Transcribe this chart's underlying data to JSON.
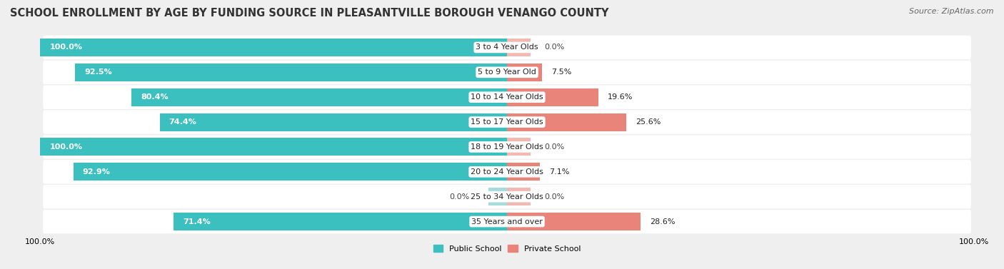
{
  "title": "SCHOOL ENROLLMENT BY AGE BY FUNDING SOURCE IN PLEASANTVILLE BOROUGH VENANGO COUNTY",
  "source": "Source: ZipAtlas.com",
  "categories": [
    "3 to 4 Year Olds",
    "5 to 9 Year Old",
    "10 to 14 Year Olds",
    "15 to 17 Year Olds",
    "18 to 19 Year Olds",
    "20 to 24 Year Olds",
    "25 to 34 Year Olds",
    "35 Years and over"
  ],
  "public_values": [
    100.0,
    92.5,
    80.4,
    74.4,
    100.0,
    92.9,
    0.0,
    71.4
  ],
  "private_values": [
    0.0,
    7.5,
    19.6,
    25.6,
    0.0,
    7.1,
    0.0,
    28.6
  ],
  "public_color": "#3BBFBF",
  "public_color_light": "#A8DCDC",
  "private_color": "#E8847A",
  "private_color_light": "#F2B8B2",
  "public_label": "Public School",
  "private_label": "Private School",
  "bg_color": "#EFEFEF",
  "bar_bg_color": "#FFFFFF",
  "title_fontsize": 10.5,
  "source_fontsize": 8,
  "value_fontsize": 8,
  "cat_fontsize": 8,
  "bar_height": 0.72,
  "pivot": 50.0,
  "total_width": 100.0,
  "xtick_labels": [
    "100.0%",
    "100.0%"
  ]
}
